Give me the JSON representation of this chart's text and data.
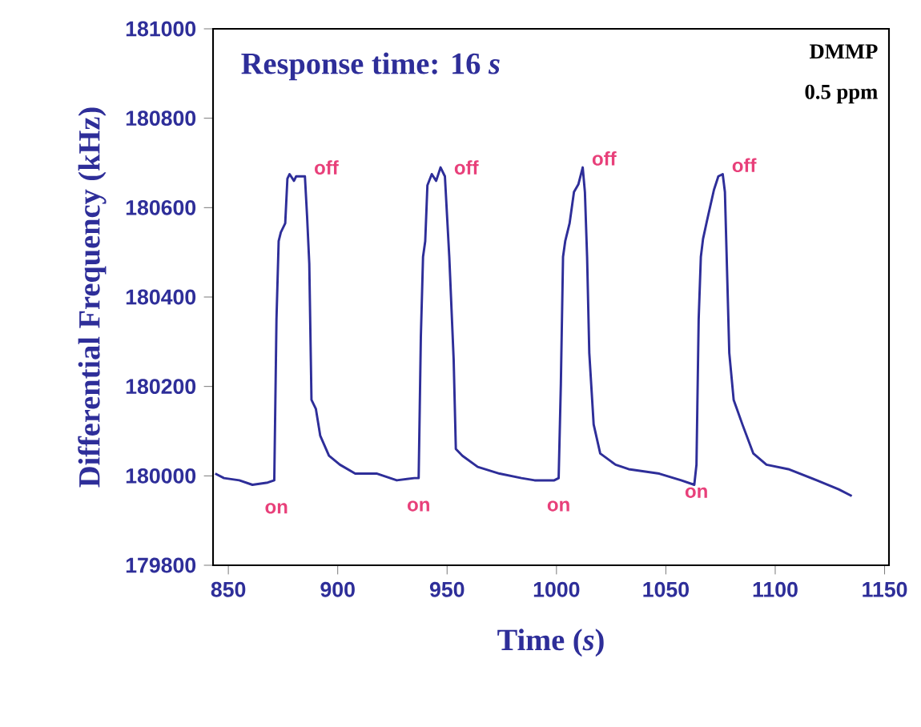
{
  "chart_data": {
    "type": "line",
    "xlabel": "Time (*s*)",
    "ylabel": "Differential Frequency (kHz)",
    "xlim": [
      843,
      1152
    ],
    "xticks": [
      850,
      900,
      950,
      1000,
      1050,
      1100,
      1150
    ],
    "ylim": [
      179800,
      181000
    ],
    "yticks": [
      179800,
      180000,
      180200,
      180400,
      180600,
      180800,
      181000
    ],
    "grid": false,
    "marker": "none",
    "line_style": "solid",
    "annotations": [
      "Response time: 16 *s*",
      "DMMP",
      "0.5 ppm",
      {
        "text": "on",
        "x": 872,
        "y": 179990
      },
      {
        "text": "off",
        "x": 885,
        "y": 180670
      },
      {
        "text": "on",
        "x": 937,
        "y": 179995
      },
      {
        "text": "off",
        "x": 949,
        "y": 180670
      },
      {
        "text": "on",
        "x": 1001,
        "y": 179995
      },
      {
        "text": "off",
        "x": 1012,
        "y": 180690
      },
      {
        "text": "on",
        "x": 1064,
        "y": 180025
      },
      {
        "text": "off",
        "x": 1076,
        "y": 180675
      }
    ],
    "series": [
      {
        "color": "#2e2e99",
        "x": [
          844,
          848,
          855,
          861,
          868,
          871,
          872,
          873,
          874,
          876,
          877,
          878,
          880,
          881,
          885,
          886,
          887,
          888,
          890,
          892,
          896,
          901,
          908,
          918,
          927,
          935,
          937,
          938,
          939,
          940,
          941,
          943,
          945,
          947,
          949,
          950,
          951,
          953,
          954,
          957,
          964,
          974,
          984,
          990,
          999,
          1001,
          1002,
          1003,
          1004,
          1006,
          1008,
          1010,
          1012,
          1013,
          1014,
          1015,
          1017,
          1020,
          1027,
          1033,
          1047,
          1057,
          1063,
          1064,
          1065,
          1066,
          1067,
          1069,
          1072,
          1074,
          1076,
          1077,
          1078,
          1079,
          1081,
          1085,
          1090,
          1096,
          1106,
          1119,
          1129,
          1135
        ],
        "values": [
          180005,
          179995,
          179990,
          179980,
          179985,
          179990,
          180350,
          180525,
          180545,
          180565,
          180665,
          180675,
          180660,
          180670,
          180670,
          180580,
          180475,
          180170,
          180150,
          180090,
          180045,
          180025,
          180005,
          180005,
          179990,
          179995,
          179995,
          180310,
          180490,
          180525,
          180650,
          180675,
          180660,
          180690,
          180670,
          180580,
          180490,
          180260,
          180060,
          180045,
          180020,
          180005,
          179995,
          179990,
          179990,
          179995,
          180205,
          180490,
          180525,
          180565,
          180635,
          180652,
          180690,
          180635,
          180490,
          180275,
          180115,
          180050,
          180025,
          180015,
          180005,
          179990,
          179980,
          180025,
          180350,
          180490,
          180530,
          180575,
          180640,
          180670,
          180675,
          180635,
          180455,
          180275,
          180170,
          180115,
          180050,
          180025,
          180015,
          179990,
          179970,
          179955
        ]
      }
    ]
  }
}
